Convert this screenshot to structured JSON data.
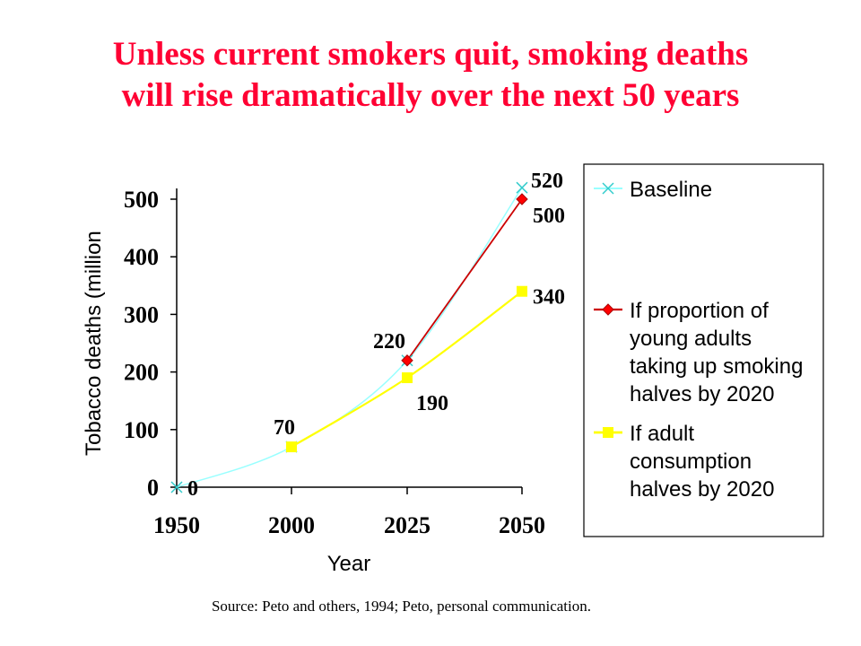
{
  "page": {
    "title_line1": "Unless current smokers quit, smoking deaths",
    "title_line2": "will rise dramatically over the next 50 years",
    "source": "Source: Peto and others, 1994; Peto, personal communication."
  },
  "colors": {
    "title": "#ff0033",
    "baseline": "#99ffff",
    "youth": "#cc0000",
    "youth_marker": "#ff0000",
    "adult": "#ffff00"
  },
  "chart_data": {
    "type": "line",
    "xlabel": "Year",
    "ylabel": "Tobacco deaths (million",
    "ylim": [
      0,
      500
    ],
    "yticks": [
      "0",
      "100",
      "200",
      "300",
      "400",
      "500"
    ],
    "x": [
      "1950",
      "2000",
      "2025",
      "2050"
    ],
    "series": [
      {
        "name": "Baseline",
        "marker": "x",
        "points": [
          {
            "x": "1950",
            "y": 0
          },
          {
            "x": "2000",
            "y": 70
          },
          {
            "x": "2025",
            "y": 220
          },
          {
            "x": "2050",
            "y": 520
          }
        ]
      },
      {
        "name_lines": [
          "If proportion of",
          "young adults",
          "taking up smoking",
          "halves by 2020"
        ],
        "marker": "diamond",
        "points": [
          {
            "x": "2025",
            "y": 220
          },
          {
            "x": "2050",
            "y": 500
          }
        ]
      },
      {
        "name_lines": [
          "If adult",
          "consumption",
          "halves by 2020"
        ],
        "marker": "square",
        "points": [
          {
            "x": "2000",
            "y": 70
          },
          {
            "x": "2025",
            "y": 190
          },
          {
            "x": "2050",
            "y": 340
          }
        ]
      }
    ],
    "data_labels": [
      {
        "text": "0",
        "x": "1950",
        "y": 0
      },
      {
        "text": "70",
        "x": "2000",
        "y": 70
      },
      {
        "text": "220",
        "x": "2025",
        "y": 220
      },
      {
        "text": "190",
        "x": "2025",
        "y": 190
      },
      {
        "text": "520",
        "x": "2050",
        "y": 520
      },
      {
        "text": "500",
        "x": "2050",
        "y": 500
      },
      {
        "text": "340",
        "x": "2050",
        "y": 340
      }
    ],
    "legend": "right"
  }
}
